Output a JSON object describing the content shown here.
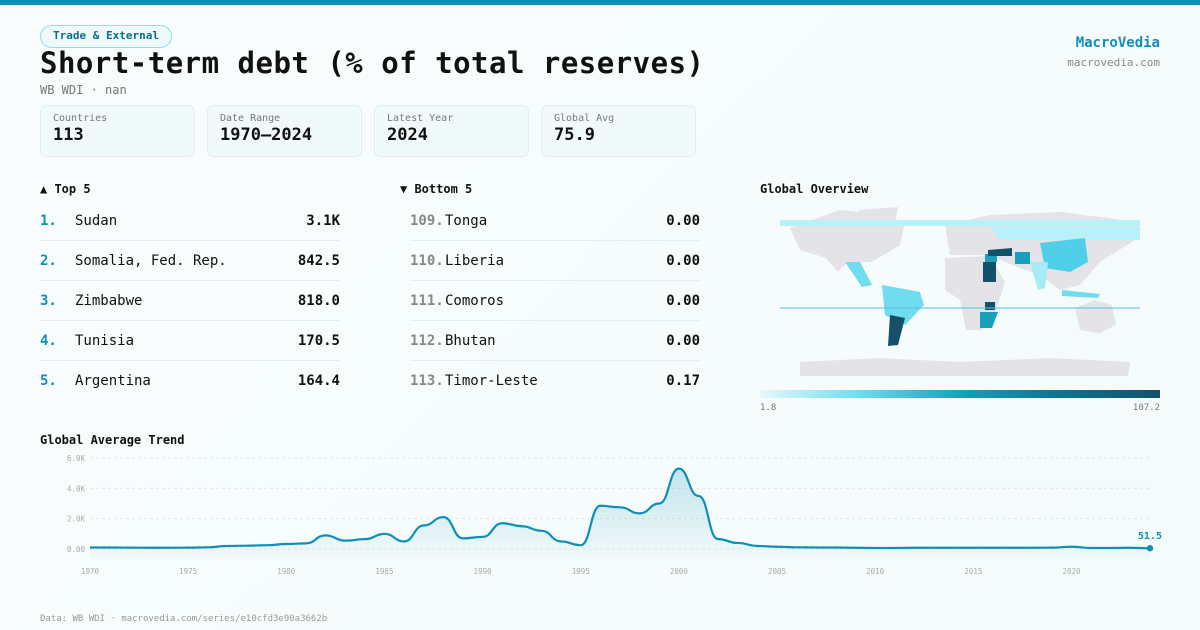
{
  "header": {
    "category": "Trade & External",
    "title": "Short-term debt (% of total reserves)",
    "subtitle": "WB WDI · nan",
    "brand": "MacroVedia",
    "brand_url": "macrovedia.com"
  },
  "stats": [
    {
      "label": "Countries",
      "value": "113"
    },
    {
      "label": "Date Range",
      "value": "1970–2024"
    },
    {
      "label": "Latest Year",
      "value": "2024"
    },
    {
      "label": "Global Avg",
      "value": "75.9"
    }
  ],
  "top5": {
    "title": "▲ Top 5",
    "items": [
      {
        "rank": "1.",
        "name": "Sudan",
        "value": "3.1K"
      },
      {
        "rank": "2.",
        "name": "Somalia, Fed. Rep.",
        "value": "842.5"
      },
      {
        "rank": "3.",
        "name": "Zimbabwe",
        "value": "818.0"
      },
      {
        "rank": "4.",
        "name": "Tunisia",
        "value": "170.5"
      },
      {
        "rank": "5.",
        "name": "Argentina",
        "value": "164.4"
      }
    ]
  },
  "bottom5": {
    "title": "▼ Bottom 5",
    "items": [
      {
        "rank": "109.",
        "name": "Tonga",
        "value": "0.00"
      },
      {
        "rank": "110.",
        "name": "Liberia",
        "value": "0.00"
      },
      {
        "rank": "111.",
        "name": "Comoros",
        "value": "0.00"
      },
      {
        "rank": "112.",
        "name": "Bhutan",
        "value": "0.00"
      },
      {
        "rank": "113.",
        "name": "Timor-Leste",
        "value": "0.17"
      }
    ]
  },
  "map": {
    "title": "Global Overview",
    "legend_min": "1.8",
    "legend_max": "107.2",
    "colors": [
      "#e6f8fb",
      "#6fdcef",
      "#1a9fbd",
      "#14506a"
    ]
  },
  "footer": "Data: WB WDI · macrovedia.com/series/e10cfd3e90a3662b",
  "chart_data": {
    "type": "area",
    "title": "Global Average Trend",
    "accent": "#0e8fb5",
    "x": [
      1970,
      1971,
      1972,
      1973,
      1974,
      1975,
      1976,
      1977,
      1978,
      1979,
      1980,
      1981,
      1982,
      1983,
      1984,
      1985,
      1986,
      1987,
      1988,
      1989,
      1990,
      1991,
      1992,
      1993,
      1994,
      1995,
      1996,
      1997,
      1998,
      1999,
      2000,
      2001,
      2002,
      2003,
      2004,
      2005,
      2006,
      2007,
      2008,
      2009,
      2010,
      2011,
      2012,
      2013,
      2014,
      2015,
      2016,
      2017,
      2018,
      2019,
      2020,
      2021,
      2022,
      2023,
      2024
    ],
    "y": [
      100,
      100,
      90,
      80,
      80,
      90,
      110,
      200,
      220,
      250,
      330,
      370,
      900,
      550,
      650,
      1000,
      500,
      1550,
      2100,
      700,
      800,
      1700,
      1500,
      1200,
      500,
      250,
      2850,
      2750,
      2350,
      3000,
      5300,
      3500,
      650,
      400,
      200,
      150,
      110,
      100,
      100,
      80,
      70,
      70,
      80,
      80,
      80,
      80,
      80,
      80,
      80,
      90,
      150,
      70,
      70,
      80,
      51.5
    ],
    "ylim": [
      0,
      6000
    ],
    "yticks": [
      0,
      2000,
      4000,
      6000
    ],
    "ytick_labels": [
      "0.00",
      "2.0K",
      "4.0K",
      "6.0K"
    ],
    "xticks": [
      1970,
      1975,
      1980,
      1985,
      1990,
      1995,
      2000,
      2005,
      2010,
      2015,
      2020
    ],
    "last_label": "51.5"
  }
}
